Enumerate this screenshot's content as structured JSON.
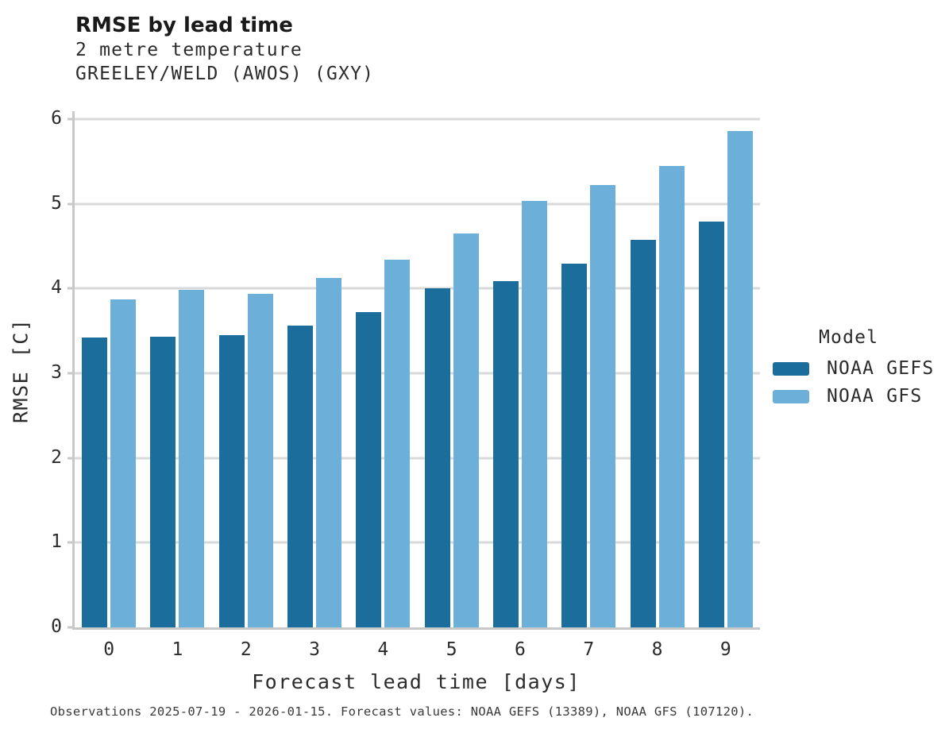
{
  "header": {
    "title": "RMSE by lead time",
    "subtitle_line1": "2 metre temperature",
    "subtitle_line2": "GREELEY/WELD (AWOS) (GXY)"
  },
  "chart_data": {
    "type": "bar",
    "title": "RMSE by lead time",
    "subtitle": [
      "2 metre temperature",
      "GREELEY/WELD (AWOS) (GXY)"
    ],
    "categories": [
      "0",
      "1",
      "2",
      "3",
      "4",
      "5",
      "6",
      "7",
      "8",
      "9"
    ],
    "series": [
      {
        "name": "NOAA GEFS",
        "color": "#1b6d9c",
        "values": [
          3.42,
          3.43,
          3.45,
          3.56,
          3.72,
          4.0,
          4.09,
          4.29,
          4.57,
          4.79
        ]
      },
      {
        "name": "NOAA GFS",
        "color": "#6cb0d9",
        "values": [
          3.87,
          3.98,
          3.94,
          4.12,
          4.34,
          4.65,
          5.03,
          5.22,
          5.45,
          5.86
        ]
      }
    ],
    "xlabel": "Forecast lead time [days]",
    "ylabel": "RMSE [C]",
    "ylim": [
      0,
      6
    ],
    "yticks": [
      0,
      1,
      2,
      3,
      4,
      5,
      6
    ],
    "grid": true,
    "legend_title": "Model",
    "legend_position": "right"
  },
  "colors": {
    "noaa_gefs": "#1b6d9c",
    "noaa_gfs": "#6cb0d9",
    "gridline": "#d9d9d9",
    "axis": "#c8c8c8"
  },
  "footer": {
    "note": "Observations 2025-07-19 - 2026-01-15. Forecast values: NOAA GEFS (13389), NOAA GFS (107120)."
  }
}
